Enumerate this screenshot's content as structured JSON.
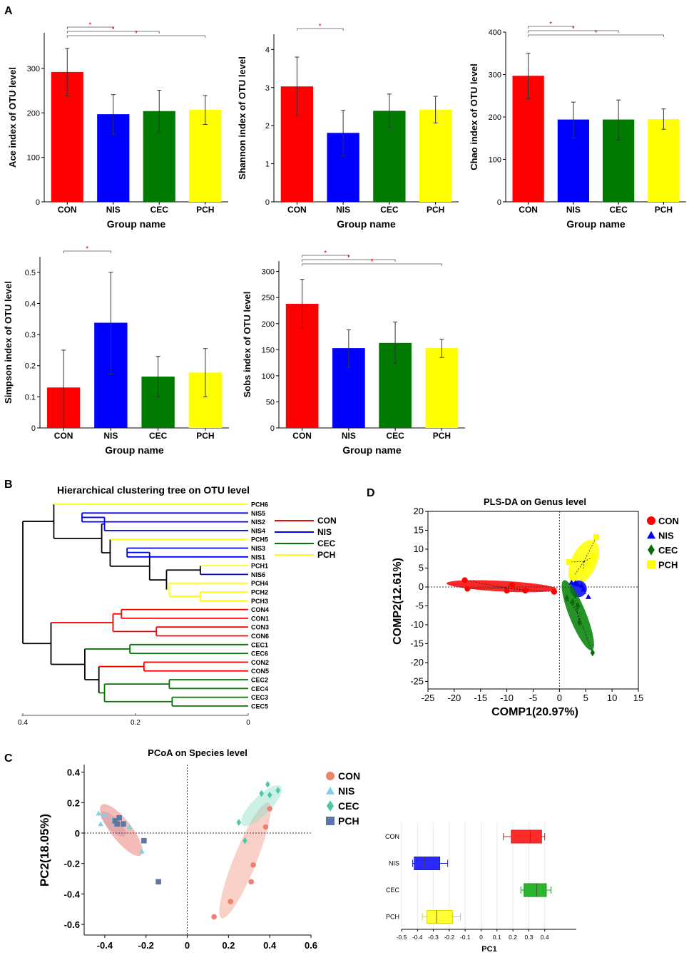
{
  "panel_labels": {
    "A": "A",
    "B": "B",
    "C": "C",
    "D": "D"
  },
  "sig_mark": "*",
  "colors": {
    "CON": "#ff0000",
    "NIS": "#0000ff",
    "CEC": "#007a00",
    "PCH": "#ffff00"
  },
  "chart_data": [
    {
      "id": "ace",
      "type": "bar",
      "title": "",
      "xlabel": "Group name",
      "ylabel": "Ace index of OTU level",
      "categories": [
        "CON",
        "NIS",
        "CEC",
        "PCH"
      ],
      "values": [
        292,
        197,
        204,
        207
      ],
      "errors": [
        [
          238,
          345
        ],
        [
          152,
          241
        ],
        [
          156,
          251
        ],
        [
          174,
          239
        ]
      ],
      "ylim": [
        0,
        380
      ],
      "yticks": [
        0,
        100,
        200,
        300
      ],
      "significance": [
        [
          0,
          1
        ],
        [
          0,
          2
        ],
        [
          0,
          3
        ]
      ]
    },
    {
      "id": "shannon",
      "type": "bar",
      "title": "",
      "xlabel": "Group name",
      "ylabel": "Shannon index of OTU level",
      "categories": [
        "CON",
        "NIS",
        "CEC",
        "PCH"
      ],
      "values": [
        3.03,
        1.81,
        2.39,
        2.42
      ],
      "errors": [
        [
          2.27,
          3.8
        ],
        [
          1.21,
          2.4
        ],
        [
          1.95,
          2.83
        ],
        [
          2.07,
          2.77
        ]
      ],
      "ylim": [
        0,
        4.4
      ],
      "yticks": [
        0,
        1,
        2,
        3,
        4
      ],
      "significance": [
        [
          0,
          1
        ]
      ]
    },
    {
      "id": "chao",
      "type": "bar",
      "title": "",
      "xlabel": "Group name",
      "ylabel": "Chao index of OTU level",
      "categories": [
        "CON",
        "NIS",
        "CEC",
        "PCH"
      ],
      "values": [
        297,
        194,
        194,
        195
      ],
      "errors": [
        [
          243,
          350
        ],
        [
          150,
          235
        ],
        [
          146,
          240
        ],
        [
          171,
          219
        ]
      ],
      "ylim": [
        0,
        400
      ],
      "yticks": [
        0,
        100,
        200,
        300,
        400
      ],
      "significance": [
        [
          0,
          1
        ],
        [
          0,
          2
        ],
        [
          0,
          3
        ]
      ]
    },
    {
      "id": "simpson",
      "type": "bar",
      "title": "",
      "xlabel": "Group name",
      "ylabel": "Simpson index of OTU level",
      "categories": [
        "CON",
        "NIS",
        "CEC",
        "PCH"
      ],
      "values": [
        0.13,
        0.338,
        0.165,
        0.178
      ],
      "errors": [
        [
          0.0,
          0.25
        ],
        [
          0.173,
          0.5
        ],
        [
          0.1,
          0.23
        ],
        [
          0.1,
          0.255
        ]
      ],
      "ylim": [
        0,
        0.55
      ],
      "yticks": [
        0,
        0.1,
        0.2,
        0.3,
        0.4,
        0.5
      ],
      "significance": [
        [
          0,
          1
        ]
      ]
    },
    {
      "id": "sobs",
      "type": "bar",
      "title": "",
      "xlabel": "Group name",
      "ylabel": "Sobs index of OTU level",
      "categories": [
        "CON",
        "NIS",
        "CEC",
        "PCH"
      ],
      "values": [
        238,
        153,
        163,
        153
      ],
      "errors": [
        [
          192,
          285
        ],
        [
          116,
          188
        ],
        [
          124,
          203
        ],
        [
          135,
          170
        ]
      ],
      "ylim": [
        0,
        320
      ],
      "yticks": [
        0,
        50,
        100,
        150,
        200,
        250,
        300
      ],
      "significance": [
        [
          0,
          1
        ],
        [
          0,
          2
        ],
        [
          0,
          3
        ]
      ]
    },
    {
      "id": "dendrogram",
      "type": "dendrogram",
      "title": "Hierarchical clustering tree on OTU level",
      "leaves": [
        "PCH6",
        "NIS5",
        "NIS2",
        "NIS4",
        "PCH5",
        "NIS3",
        "NIS1",
        "PCH1",
        "NIS6",
        "PCH4",
        "PCH2",
        "PCH3",
        "CON4",
        "CON1",
        "CON3",
        "CON6",
        "CEC1",
        "CEC6",
        "CON2",
        "CON5",
        "CEC2",
        "CEC4",
        "CEC3",
        "CEC5"
      ],
      "xticks": [
        0.4,
        0.2,
        0
      ],
      "legend": [
        "CON",
        "NIS",
        "CEC",
        "PCH"
      ]
    },
    {
      "id": "plsda",
      "type": "scatter",
      "title": "PLS-DA on Genus level",
      "xlabel": "COMP1(20.97%)",
      "ylabel": "COMP2(12.61%)",
      "xlim": [
        -25,
        15
      ],
      "ylim": [
        -27,
        20
      ],
      "xticks": [
        -25,
        -20,
        -15,
        -10,
        -5,
        0,
        5,
        10,
        15
      ],
      "yticks": [
        -25,
        -20,
        -15,
        -10,
        -5,
        0,
        5,
        10,
        15,
        20
      ],
      "legend": [
        "CON",
        "NIS",
        "CEC",
        "PCH"
      ],
      "series": [
        {
          "name": "CON",
          "points": [
            [
              -18,
              1.8
            ],
            [
              -17.5,
              -0.5
            ],
            [
              -10,
              -1
            ],
            [
              -9,
              0.5
            ],
            [
              -6.5,
              -1
            ],
            [
              -1,
              -1.3
            ]
          ]
        },
        {
          "name": "NIS",
          "points": [
            [
              2.3,
              1.2
            ],
            [
              3,
              1
            ],
            [
              3.4,
              0.8
            ],
            [
              4.2,
              0.4
            ],
            [
              4.6,
              -0.6
            ],
            [
              5.5,
              -2.6
            ]
          ]
        },
        {
          "name": "CEC",
          "points": [
            [
              1.4,
              -3
            ],
            [
              2.5,
              -4
            ],
            [
              3,
              -2.2
            ],
            [
              3.5,
              -5
            ],
            [
              3.8,
              -9.4
            ],
            [
              6.3,
              -17.4
            ]
          ]
        },
        {
          "name": "PCH",
          "points": [
            [
              1.8,
              6.6
            ],
            [
              2.6,
              2.6
            ],
            [
              4.5,
              4
            ],
            [
              5.5,
              6
            ],
            [
              6.5,
              8
            ],
            [
              7,
              13.2
            ]
          ]
        }
      ]
    },
    {
      "id": "pcoa",
      "type": "scatter",
      "title": "PCoA on Species level",
      "xlabel": "",
      "ylabel": "PC2(18.05%)",
      "xlim": [
        -0.5,
        0.6
      ],
      "ylim": [
        -0.67,
        0.45
      ],
      "xticks": [
        -0.4,
        -0.2,
        0,
        0.2,
        0.4,
        0.6
      ],
      "yticks": [
        -0.6,
        -0.4,
        -0.2,
        0,
        0.2,
        0.4
      ],
      "legend": [
        "CON",
        "NIS",
        "CEC",
        "PCH"
      ],
      "series": [
        {
          "name": "CON",
          "points": [
            [
              0.13,
              -0.55
            ],
            [
              0.21,
              -0.45
            ],
            [
              0.31,
              -0.32
            ],
            [
              0.32,
              -0.21
            ],
            [
              0.38,
              0.04
            ],
            [
              0.4,
              0.16
            ]
          ]
        },
        {
          "name": "NIS",
          "points": [
            [
              -0.43,
              0.13
            ],
            [
              -0.4,
              0.12
            ],
            [
              -0.42,
              0.06
            ],
            [
              -0.36,
              0.09
            ],
            [
              -0.28,
              0.04
            ],
            [
              -0.22,
              -0.12
            ]
          ]
        },
        {
          "name": "CEC",
          "points": [
            [
              0.25,
              0.07
            ],
            [
              0.28,
              -0.05
            ],
            [
              0.36,
              0.26
            ],
            [
              0.39,
              0.32
            ],
            [
              0.4,
              0.25
            ],
            [
              0.44,
              0.28
            ]
          ]
        },
        {
          "name": "PCH",
          "points": [
            [
              -0.35,
              0.08
            ],
            [
              -0.34,
              0.06
            ],
            [
              -0.33,
              0.1
            ],
            [
              -0.31,
              0.06
            ],
            [
              -0.21,
              -0.05
            ],
            [
              -0.14,
              -0.32
            ]
          ]
        }
      ]
    },
    {
      "id": "pc1_box",
      "type": "box",
      "xlabel": "PC1",
      "xlim": [
        -0.5,
        0.5
      ],
      "xticks": [
        -0.5,
        -0.4,
        -0.3,
        -0.2,
        -0.1,
        0,
        0.1,
        0.2,
        0.3,
        0.4
      ],
      "groups": [
        {
          "name": "CON",
          "min": 0.14,
          "q1": 0.19,
          "median": 0.31,
          "q3": 0.38,
          "max": 0.4
        },
        {
          "name": "NIS",
          "min": -0.43,
          "q1": -0.42,
          "median": -0.36,
          "q3": -0.26,
          "max": -0.21
        },
        {
          "name": "CEC",
          "min": 0.25,
          "q1": 0.27,
          "median": 0.35,
          "q3": 0.41,
          "max": 0.44
        },
        {
          "name": "PCH",
          "min": -0.37,
          "q1": -0.34,
          "median": -0.28,
          "q3": -0.18,
          "max": -0.13
        }
      ]
    }
  ]
}
